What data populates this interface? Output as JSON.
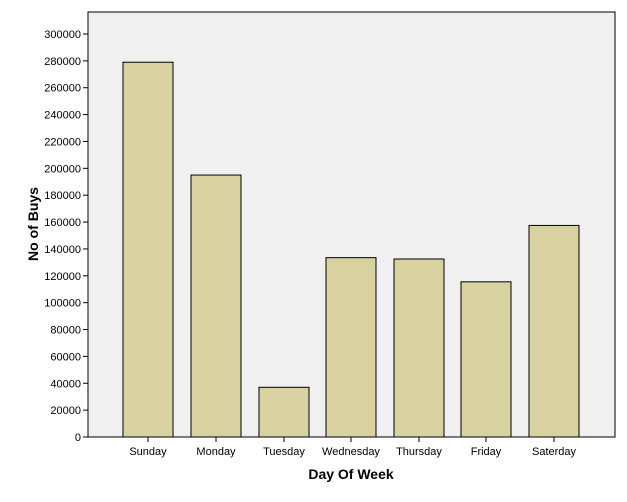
{
  "chart_data": {
    "type": "bar",
    "categories": [
      "Sunday",
      "Monday",
      "Tuesday",
      "Wednesday",
      "Thursday",
      "Friday",
      "Saterday"
    ],
    "values": [
      279000,
      195000,
      37000,
      133500,
      132500,
      115500,
      157500
    ],
    "title": "",
    "xlabel": "Day Of Week",
    "ylabel": "No of Buys",
    "ylim": [
      0,
      300000
    ],
    "yticks": [
      0,
      20000,
      40000,
      60000,
      80000,
      100000,
      120000,
      140000,
      160000,
      180000,
      200000,
      220000,
      240000,
      260000,
      280000,
      300000
    ],
    "grid": false,
    "legend": "none",
    "colors": {
      "bar_fill": "#d8d2a0",
      "bar_stroke": "#000000",
      "plot_background": "#f0f0f0"
    }
  }
}
